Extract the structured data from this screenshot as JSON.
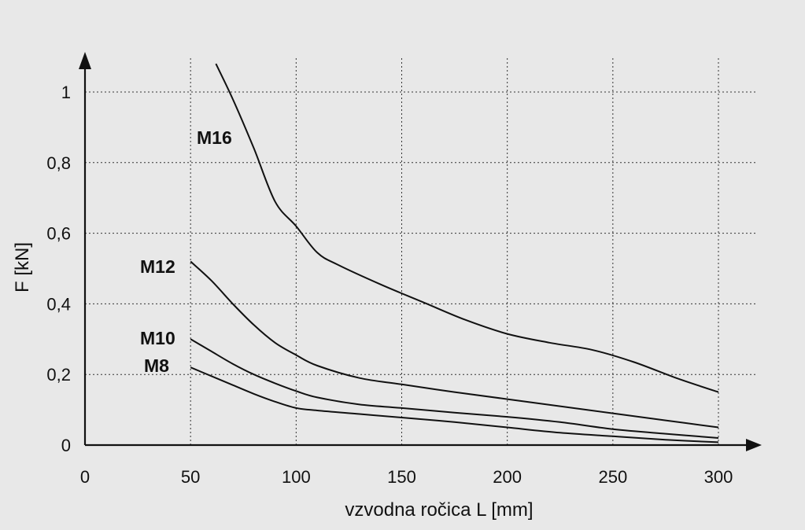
{
  "chart_data": {
    "type": "line",
    "title": "",
    "xlabel": "vzvodna ročica L [mm]",
    "ylabel": "F [kN]",
    "xlim": [
      0,
      300
    ],
    "ylim": [
      0,
      1
    ],
    "x_ticks": [
      {
        "value": 0,
        "label": "0"
      },
      {
        "value": 50,
        "label": "50"
      },
      {
        "value": 100,
        "label": "100"
      },
      {
        "value": 150,
        "label": "150"
      },
      {
        "value": 200,
        "label": "200"
      },
      {
        "value": 250,
        "label": "250"
      },
      {
        "value": 300,
        "label": "300"
      }
    ],
    "y_ticks": [
      {
        "value": 0,
        "label": "0"
      },
      {
        "value": 0.2,
        "label": "0,2"
      },
      {
        "value": 0.4,
        "label": "0,4"
      },
      {
        "value": 0.6,
        "label": "0,6"
      },
      {
        "value": 0.8,
        "label": "0,8"
      },
      {
        "value": 1,
        "label": "1"
      }
    ],
    "grid": true,
    "grid_style": "dotted",
    "legend": "none",
    "series": [
      {
        "name": "M16",
        "x": [
          62,
          70,
          80,
          90,
          100,
          110,
          120,
          140,
          160,
          180,
          200,
          220,
          240,
          260,
          280,
          300
        ],
        "y": [
          1.08,
          0.98,
          0.84,
          0.69,
          0.62,
          0.545,
          0.51,
          0.455,
          0.405,
          0.355,
          0.315,
          0.29,
          0.27,
          0.235,
          0.19,
          0.15
        ]
      },
      {
        "name": "M12",
        "x": [
          50,
          60,
          70,
          80,
          90,
          100,
          110,
          130,
          150,
          175,
          200,
          225,
          250,
          275,
          300
        ],
        "y": [
          0.52,
          0.465,
          0.4,
          0.34,
          0.29,
          0.255,
          0.225,
          0.19,
          0.172,
          0.15,
          0.13,
          0.11,
          0.09,
          0.07,
          0.05
        ]
      },
      {
        "name": "M10",
        "x": [
          50,
          60,
          70,
          80,
          90,
          100,
          110,
          130,
          150,
          175,
          200,
          225,
          250,
          275,
          300
        ],
        "y": [
          0.3,
          0.265,
          0.23,
          0.2,
          0.175,
          0.153,
          0.135,
          0.115,
          0.105,
          0.092,
          0.08,
          0.065,
          0.045,
          0.032,
          0.02
        ]
      },
      {
        "name": "M8",
        "x": [
          50,
          60,
          70,
          80,
          90,
          100,
          110,
          130,
          150,
          175,
          200,
          225,
          250,
          275,
          300
        ],
        "y": [
          0.22,
          0.195,
          0.17,
          0.145,
          0.123,
          0.105,
          0.098,
          0.088,
          0.078,
          0.065,
          0.05,
          0.035,
          0.025,
          0.015,
          0.008
        ]
      }
    ],
    "series_label_text": [
      "M16",
      "M12",
      "M10",
      "M8"
    ]
  }
}
